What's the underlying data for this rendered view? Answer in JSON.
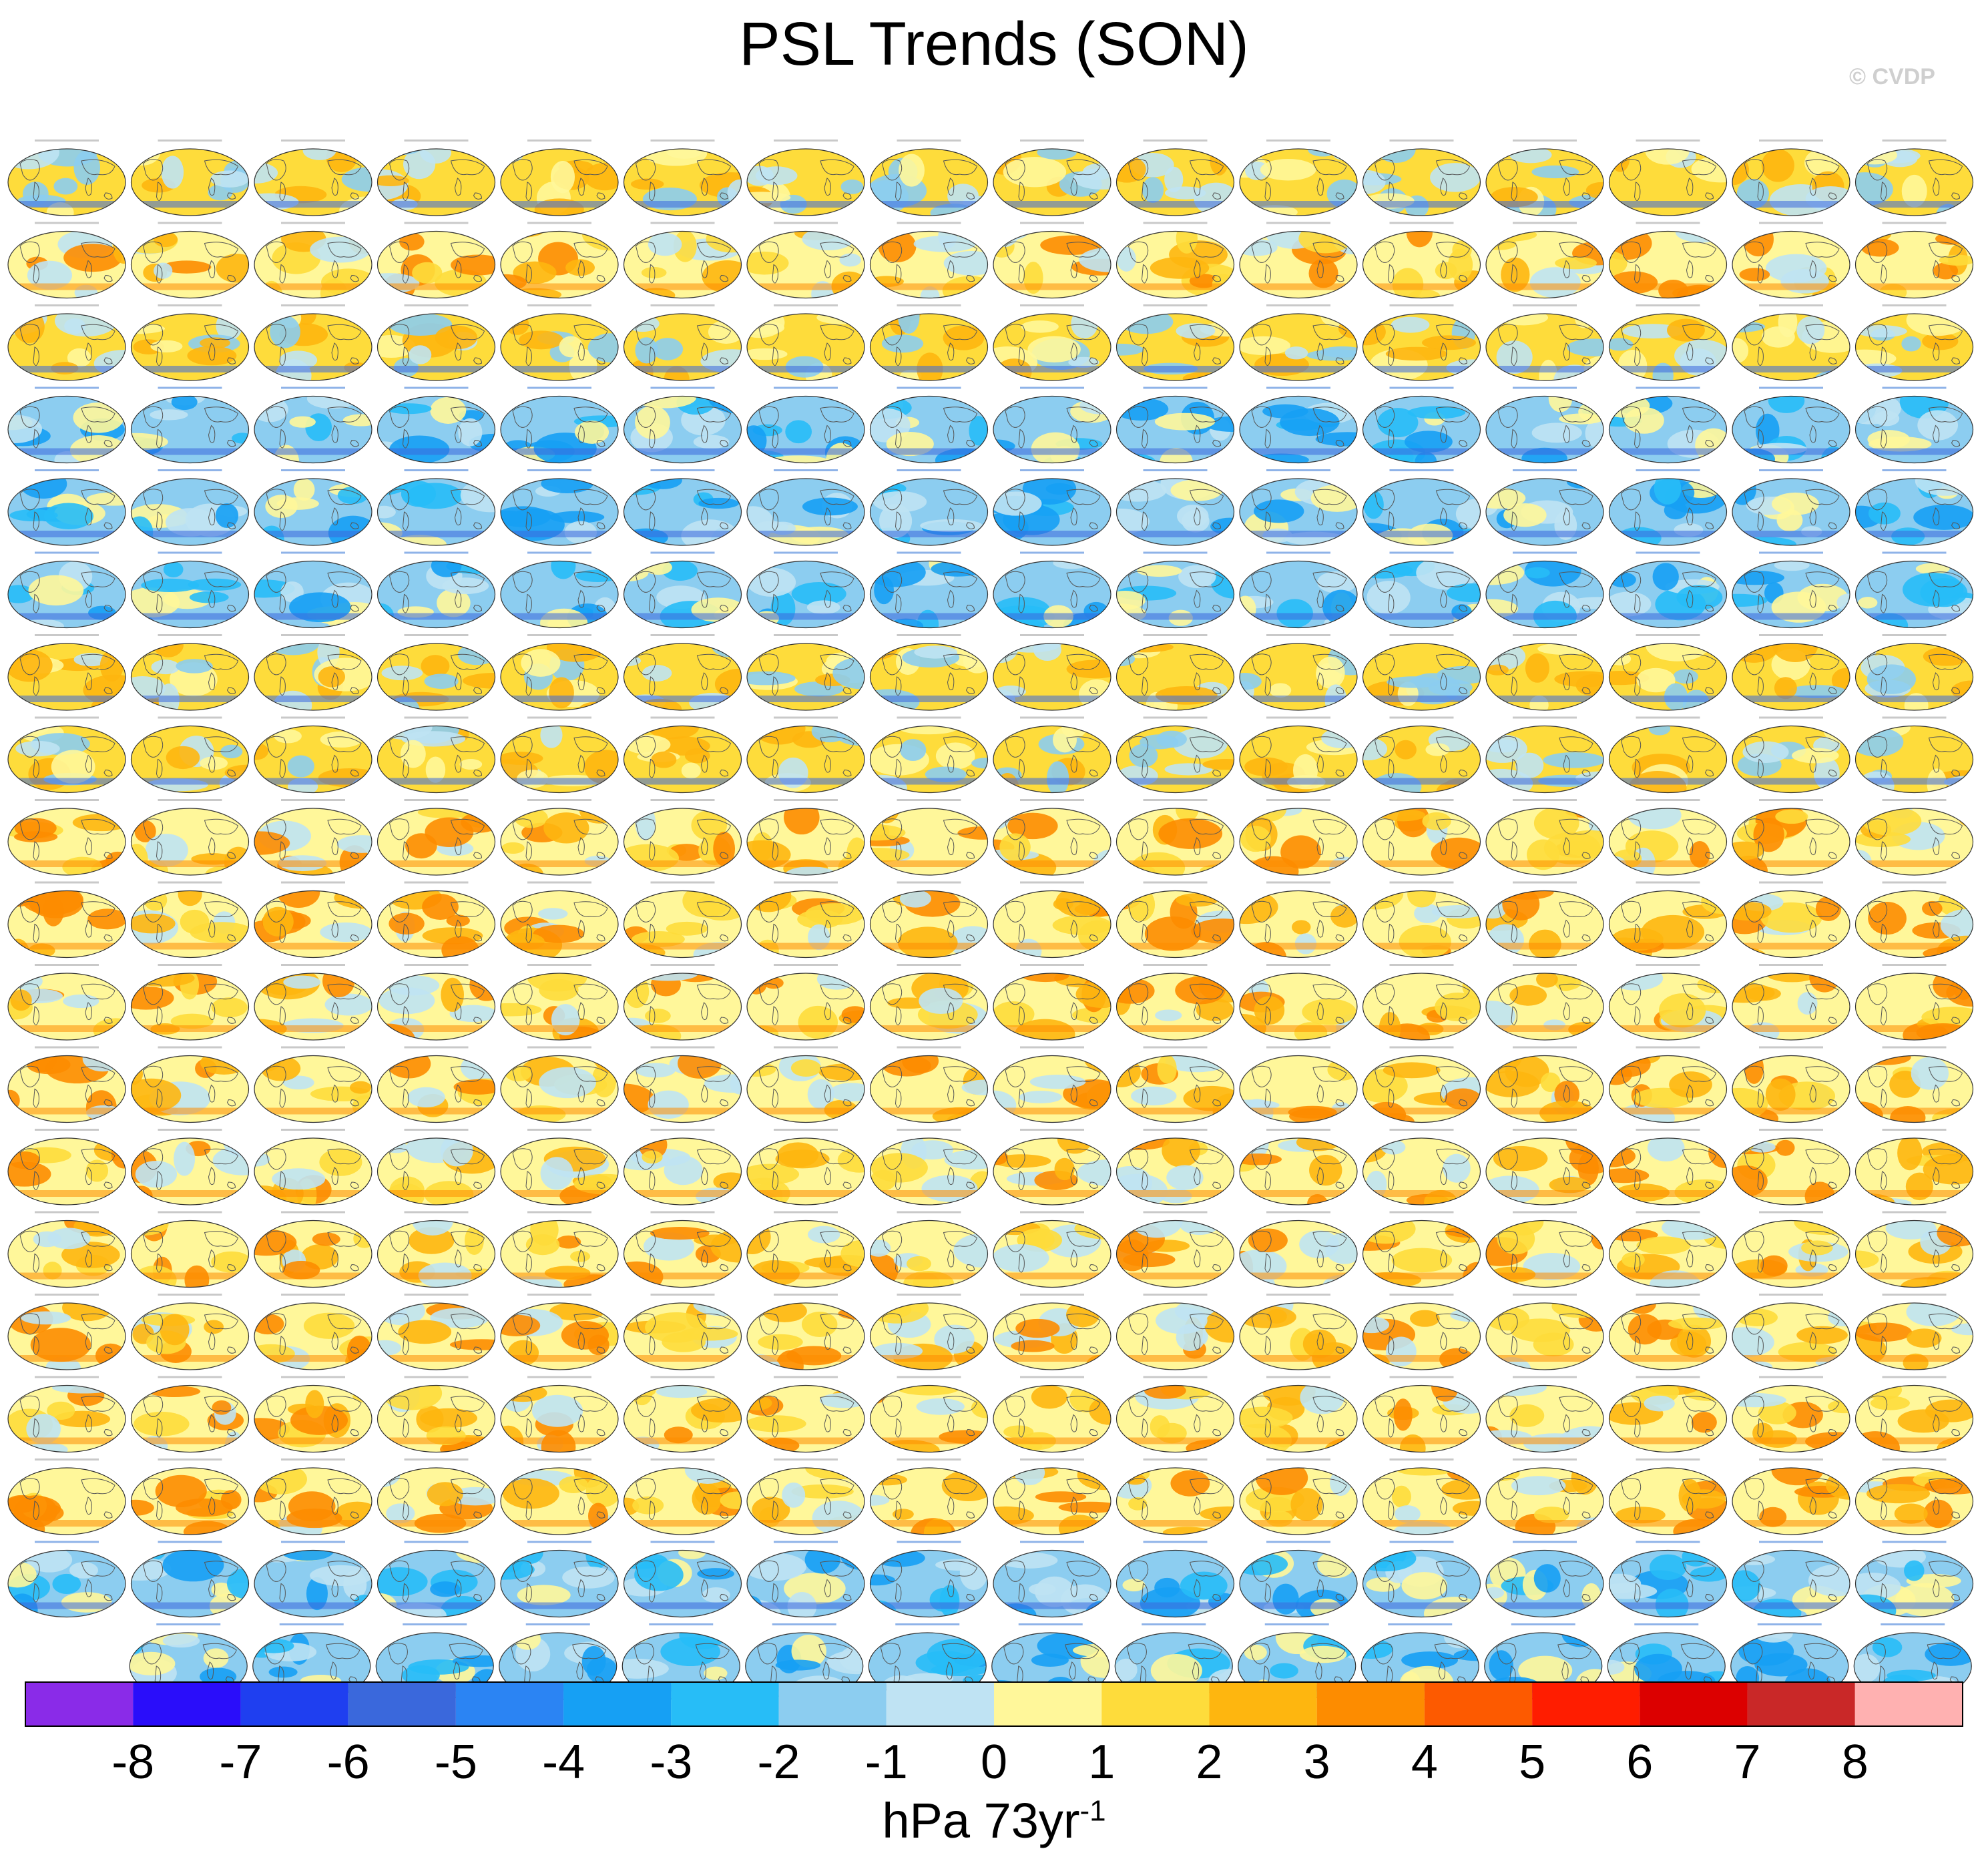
{
  "title": "PSL Trends (SON)",
  "watermark": "© CVDP",
  "colorbar": {
    "ticks": [
      "-8",
      "-7",
      "-6",
      "-5",
      "-4",
      "-3",
      "-2",
      "-1",
      "0",
      "1",
      "2",
      "3",
      "4",
      "5",
      "6",
      "7",
      "8"
    ],
    "colors": [
      "#8a2be8",
      "#2a0dfa",
      "#1f3ff0",
      "#3a68dc",
      "#2b84f3",
      "#16a0f4",
      "#27bdf7",
      "#8ccdf0",
      "#bfe3f3",
      "#fff79a",
      "#fedc3b",
      "#feb60f",
      "#fd8c00",
      "#fd5a00",
      "#ff1d00",
      "#dc0000",
      "#c92828",
      "#ffb1b1"
    ],
    "unit_base": "hPa 73yr",
    "unit_exp": "-1"
  },
  "chart_data": {
    "type": "heatmap",
    "title": "PSL Trends (SON)",
    "description_panels": "small-multiple global map panels of sea level pressure trend",
    "panel_rows": [
      16,
      16,
      16,
      16,
      16,
      16,
      16,
      16,
      16,
      16,
      16,
      16,
      16,
      16,
      16,
      16,
      16,
      16,
      15
    ],
    "dominant_sign_by_row": [
      "mixed",
      "positive",
      "mixed",
      "negative",
      "negative",
      "negative",
      "mixed",
      "mixed",
      "positive",
      "positive",
      "positive",
      "positive",
      "positive",
      "positive",
      "positive",
      "positive",
      "positive",
      "negative",
      "negative"
    ],
    "colorbar_range": [
      -8,
      8
    ],
    "colorbar_step": 1,
    "unit": "hPa 73yr-1"
  }
}
